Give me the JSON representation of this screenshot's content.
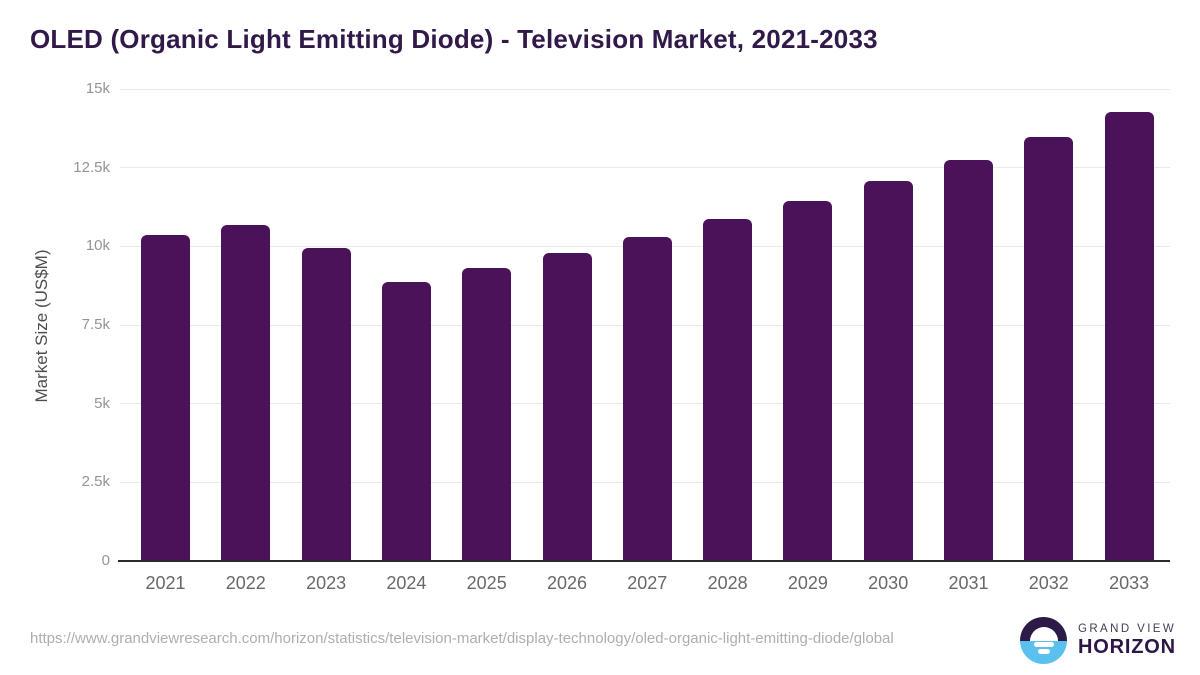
{
  "title": "OLED (Organic Light Emitting Diode) - Television Market, 2021-2033",
  "chart_data": {
    "type": "bar",
    "title": "OLED (Organic Light Emitting Diode) - Television Market, 2021-2033",
    "xlabel": "",
    "ylabel": "Market Size (US$M)",
    "ylim": [
      0,
      15000
    ],
    "grid": "horizontal",
    "legend_position": "none",
    "bar_color": "#4a1259",
    "categories": [
      "2021",
      "2022",
      "2023",
      "2024",
      "2025",
      "2026",
      "2027",
      "2028",
      "2029",
      "2030",
      "2031",
      "2032",
      "2033"
    ],
    "values": [
      10360,
      10680,
      9950,
      8860,
      9310,
      9800,
      10290,
      10870,
      11450,
      12090,
      12750,
      13480,
      14280
    ],
    "yticks": [
      {
        "value": 0,
        "label": "0"
      },
      {
        "value": 2500,
        "label": "2.5k"
      },
      {
        "value": 5000,
        "label": "5k"
      },
      {
        "value": 7500,
        "label": "7.5k"
      },
      {
        "value": 10000,
        "label": "10k"
      },
      {
        "value": 12500,
        "label": "12.5k"
      },
      {
        "value": 15000,
        "label": "15k"
      }
    ]
  },
  "footer": {
    "source_url": "https://www.grandviewresearch.com/horizon/statistics/television-market/display-technology/oled-organic-light-emitting-diode/global",
    "logo": {
      "brand_top": "GRAND VIEW",
      "brand_bottom": "HORIZON"
    }
  },
  "colors": {
    "title_text": "#31194a",
    "bar_fill": "#4a1259",
    "gridline": "#e9e9eb",
    "y_tick_text": "#949494",
    "x_tick_text": "#686868",
    "axis_line": "#2b2b2b",
    "source_text": "#aeaeae",
    "logo_dark": "#2c1a47",
    "logo_blue": "#5ac1ee"
  }
}
